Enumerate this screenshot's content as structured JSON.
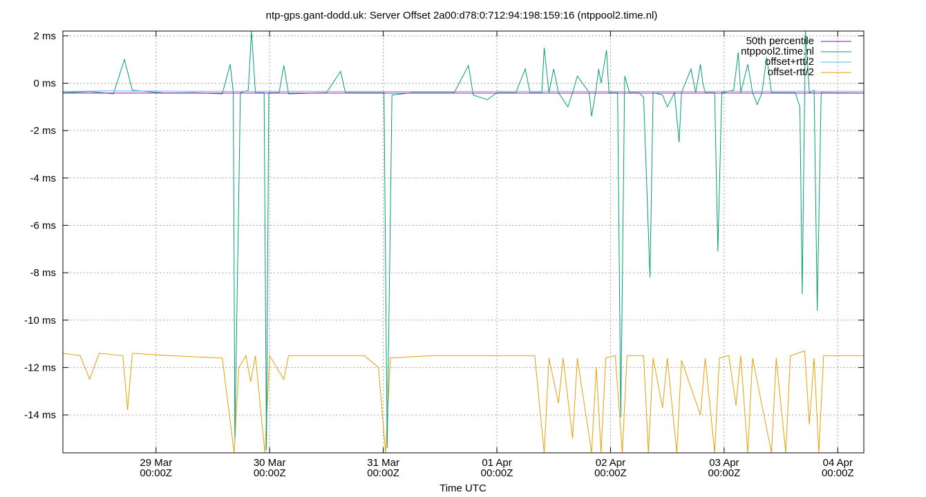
{
  "chart_data": {
    "type": "line",
    "title": "ntp-gps.gant-dodd.uk: Server Offset 2a00:d78:0:712:94:198:159:16 (ntppool2.time.nl)",
    "xlabel": "Time UTC",
    "ylabel": "",
    "ylim": [
      -15.6,
      2.2
    ],
    "xlim": [
      "2024-03-28T04:20Z",
      "2024-04-04T05:30Z"
    ],
    "grid": true,
    "legend_position": "top-right",
    "y_ticks": [
      {
        "value": 2,
        "label": "2 ms"
      },
      {
        "value": 0,
        "label": "0 ms"
      },
      {
        "value": -2,
        "label": "-2 ms"
      },
      {
        "value": -4,
        "label": "-4 ms"
      },
      {
        "value": -6,
        "label": "-6 ms"
      },
      {
        "value": -8,
        "label": "-8 ms"
      },
      {
        "value": -10,
        "label": "-10 ms"
      },
      {
        "value": -12,
        "label": "-12 ms"
      },
      {
        "value": -14,
        "label": "-14 ms"
      }
    ],
    "x_ticks": [
      {
        "value": "2024-03-29T00:00Z",
        "line1": "29 Mar",
        "line2": "00:00Z"
      },
      {
        "value": "2024-03-30T00:00Z",
        "line1": "30 Mar",
        "line2": "00:00Z"
      },
      {
        "value": "2024-03-31T00:00Z",
        "line1": "31 Mar",
        "line2": "00:00Z"
      },
      {
        "value": "2024-04-01T00:00Z",
        "line1": "01 Apr",
        "line2": "00:00Z"
      },
      {
        "value": "2024-04-02T00:00Z",
        "line1": "02 Apr",
        "line2": "00:00Z"
      },
      {
        "value": "2024-04-03T00:00Z",
        "line1": "03 Apr",
        "line2": "00:00Z"
      },
      {
        "value": "2024-04-04T00:00Z",
        "line1": "04 Apr",
        "line2": "00:00Z"
      }
    ],
    "series": [
      {
        "name": "50th percentile",
        "color": "#9400d3",
        "points": [
          [
            "2024-03-28T04:20Z",
            -0.42
          ],
          [
            "2024-04-04T05:30Z",
            -0.42
          ]
        ]
      },
      {
        "name": "ntppool2.time.nl",
        "color": "#009e73",
        "points": [
          [
            "2024-03-28T04:20Z",
            -0.4
          ],
          [
            "2024-03-28T10:00Z",
            -0.35
          ],
          [
            "2024-03-28T15:00Z",
            -0.45
          ],
          [
            "2024-03-28T17:20Z",
            1.0
          ],
          [
            "2024-03-28T19:00Z",
            -0.3
          ],
          [
            "2024-03-29T02:00Z",
            -0.42
          ],
          [
            "2024-03-29T08:00Z",
            -0.4
          ],
          [
            "2024-03-29T14:00Z",
            -0.45
          ],
          [
            "2024-03-29T15:40Z",
            0.8
          ],
          [
            "2024-03-29T16:20Z",
            -0.4
          ],
          [
            "2024-03-29T16:40Z",
            -15.0
          ],
          [
            "2024-03-29T17:50Z",
            -0.4
          ],
          [
            "2024-03-29T19:30Z",
            -0.3
          ],
          [
            "2024-03-29T20:10Z",
            2.2
          ],
          [
            "2024-03-29T21:00Z",
            -0.4
          ],
          [
            "2024-03-29T22:50Z",
            -0.4
          ],
          [
            "2024-03-29T23:20Z",
            -15.5
          ],
          [
            "2024-03-29T23:50Z",
            -0.4
          ],
          [
            "2024-03-30T02:00Z",
            -0.4
          ],
          [
            "2024-03-30T03:00Z",
            0.75
          ],
          [
            "2024-03-30T04:00Z",
            -0.45
          ],
          [
            "2024-03-30T12:00Z",
            -0.4
          ],
          [
            "2024-03-30T15:00Z",
            0.5
          ],
          [
            "2024-03-30T16:00Z",
            -0.4
          ],
          [
            "2024-03-30T22:00Z",
            -0.4
          ],
          [
            "2024-03-31T00:10Z",
            -0.4
          ],
          [
            "2024-03-31T00:50Z",
            -15.4
          ],
          [
            "2024-03-31T01:50Z",
            -0.5
          ],
          [
            "2024-03-31T06:00Z",
            -0.4
          ],
          [
            "2024-03-31T15:00Z",
            -0.4
          ],
          [
            "2024-03-31T18:00Z",
            0.75
          ],
          [
            "2024-03-31T19:00Z",
            -0.5
          ],
          [
            "2024-03-31T22:00Z",
            -0.7
          ],
          [
            "2024-04-01T00:00Z",
            -0.4
          ],
          [
            "2024-04-01T04:00Z",
            -0.4
          ],
          [
            "2024-04-01T06:00Z",
            0.6
          ],
          [
            "2024-04-01T07:00Z",
            -0.4
          ],
          [
            "2024-04-01T09:30Z",
            -0.4
          ],
          [
            "2024-04-01T10:00Z",
            1.5
          ],
          [
            "2024-04-01T11:00Z",
            -0.4
          ],
          [
            "2024-04-01T12:00Z",
            0.6
          ],
          [
            "2024-04-01T13:00Z",
            -0.4
          ],
          [
            "2024-04-01T15:00Z",
            -1.0
          ],
          [
            "2024-04-01T16:00Z",
            -0.4
          ],
          [
            "2024-04-01T17:00Z",
            0.3
          ],
          [
            "2024-04-01T19:30Z",
            -0.4
          ],
          [
            "2024-04-01T20:00Z",
            -1.4
          ],
          [
            "2024-04-01T21:00Z",
            -0.2
          ],
          [
            "2024-04-01T21:30Z",
            0.6
          ],
          [
            "2024-04-01T22:00Z",
            0.0
          ],
          [
            "2024-04-01T23:10Z",
            1.4
          ],
          [
            "2024-04-01T23:40Z",
            -0.4
          ],
          [
            "2024-04-02T01:30Z",
            -0.4
          ],
          [
            "2024-04-02T02:10Z",
            -14.1
          ],
          [
            "2024-04-02T03:00Z",
            0.3
          ],
          [
            "2024-04-02T04:00Z",
            -0.4
          ],
          [
            "2024-04-02T06:00Z",
            -0.4
          ],
          [
            "2024-04-02T07:00Z",
            -0.6
          ],
          [
            "2024-04-02T08:20Z",
            -8.2
          ],
          [
            "2024-04-02T09:00Z",
            -0.4
          ],
          [
            "2024-04-02T11:00Z",
            -0.5
          ],
          [
            "2024-04-02T12:00Z",
            -1.0
          ],
          [
            "2024-04-02T13:30Z",
            -0.4
          ],
          [
            "2024-04-02T14:30Z",
            -2.5
          ],
          [
            "2024-04-02T15:00Z",
            -0.4
          ],
          [
            "2024-04-02T17:00Z",
            0.6
          ],
          [
            "2024-04-02T18:00Z",
            -0.4
          ],
          [
            "2024-04-02T19:00Z",
            0.8
          ],
          [
            "2024-04-02T19:30Z",
            0.0
          ],
          [
            "2024-04-02T20:00Z",
            -0.4
          ],
          [
            "2024-04-02T22:00Z",
            -0.4
          ],
          [
            "2024-04-02T22:40Z",
            -7.1
          ],
          [
            "2024-04-02T23:30Z",
            -0.4
          ],
          [
            "2024-04-03T02:00Z",
            -0.3
          ],
          [
            "2024-04-03T03:00Z",
            1.3
          ],
          [
            "2024-04-03T03:30Z",
            -0.4
          ],
          [
            "2024-04-03T05:00Z",
            0.8
          ],
          [
            "2024-04-03T06:00Z",
            -0.4
          ],
          [
            "2024-04-03T07:00Z",
            -0.9
          ],
          [
            "2024-04-03T08:00Z",
            -0.4
          ],
          [
            "2024-04-03T09:00Z",
            1.1
          ],
          [
            "2024-04-03T10:00Z",
            -0.4
          ],
          [
            "2024-04-03T13:00Z",
            -0.4
          ],
          [
            "2024-04-03T15:00Z",
            -0.4
          ],
          [
            "2024-04-03T16:00Z",
            -1.0
          ],
          [
            "2024-04-03T16:30Z",
            -8.9
          ],
          [
            "2024-04-03T17:10Z",
            2.2
          ],
          [
            "2024-04-03T18:00Z",
            -0.4
          ],
          [
            "2024-04-03T19:00Z",
            -0.3
          ],
          [
            "2024-04-03T19:40Z",
            -9.6
          ],
          [
            "2024-04-03T20:30Z",
            -0.4
          ],
          [
            "2024-04-04T05:30Z",
            -0.42
          ]
        ]
      },
      {
        "name": "offset+rtt/2",
        "color": "#56b4e9",
        "points": [
          [
            "2024-03-28T04:20Z",
            -0.35
          ],
          [
            "2024-03-28T14:00Z",
            -0.33
          ],
          [
            "2024-03-29T08:00Z",
            -0.34
          ],
          [
            "2024-03-30T08:00Z",
            -0.34
          ],
          [
            "2024-03-31T08:00Z",
            -0.35
          ],
          [
            "2024-04-01T08:00Z",
            -0.34
          ],
          [
            "2024-04-02T08:00Z",
            -0.35
          ],
          [
            "2024-04-03T08:00Z",
            -0.34
          ],
          [
            "2024-04-04T05:30Z",
            -0.34
          ]
        ]
      },
      {
        "name": "offset-rtt/2",
        "color": "#e69f00",
        "points": [
          [
            "2024-03-28T04:20Z",
            -11.4
          ],
          [
            "2024-03-28T08:00Z",
            -11.5
          ],
          [
            "2024-03-28T10:00Z",
            -12.5
          ],
          [
            "2024-03-28T12:00Z",
            -11.4
          ],
          [
            "2024-03-28T17:00Z",
            -11.5
          ],
          [
            "2024-03-28T18:00Z",
            -13.8
          ],
          [
            "2024-03-28T19:00Z",
            -11.4
          ],
          [
            "2024-03-29T03:00Z",
            -11.5
          ],
          [
            "2024-03-29T14:00Z",
            -11.6
          ],
          [
            "2024-03-29T16:30Z",
            -15.6
          ],
          [
            "2024-03-29T17:30Z",
            -12.0
          ],
          [
            "2024-03-29T19:00Z",
            -11.5
          ],
          [
            "2024-03-29T20:00Z",
            -12.6
          ],
          [
            "2024-03-29T21:00Z",
            -11.5
          ],
          [
            "2024-03-29T23:00Z",
            -15.6
          ],
          [
            "2024-03-30T00:00Z",
            -11.5
          ],
          [
            "2024-03-30T03:00Z",
            -12.5
          ],
          [
            "2024-03-30T04:00Z",
            -11.5
          ],
          [
            "2024-03-30T20:00Z",
            -11.5
          ],
          [
            "2024-03-30T23:00Z",
            -12.0
          ],
          [
            "2024-03-31T00:30Z",
            -15.6
          ],
          [
            "2024-03-31T01:30Z",
            -11.6
          ],
          [
            "2024-03-31T10:00Z",
            -11.5
          ],
          [
            "2024-04-01T00:00Z",
            -11.5
          ],
          [
            "2024-04-01T08:00Z",
            -11.5
          ],
          [
            "2024-04-01T10:00Z",
            -15.6
          ],
          [
            "2024-04-01T11:00Z",
            -11.6
          ],
          [
            "2024-04-01T13:00Z",
            -13.5
          ],
          [
            "2024-04-01T14:00Z",
            -11.6
          ],
          [
            "2024-04-01T16:00Z",
            -15.0
          ],
          [
            "2024-04-01T17:00Z",
            -11.6
          ],
          [
            "2024-04-01T20:00Z",
            -15.6
          ],
          [
            "2024-04-01T21:00Z",
            -12.0
          ],
          [
            "2024-04-01T22:00Z",
            -15.6
          ],
          [
            "2024-04-01T23:00Z",
            -11.6
          ],
          [
            "2024-04-02T01:00Z",
            -11.5
          ],
          [
            "2024-04-02T02:30Z",
            -15.6
          ],
          [
            "2024-04-02T03:30Z",
            -11.5
          ],
          [
            "2024-04-02T07:00Z",
            -11.5
          ],
          [
            "2024-04-02T08:00Z",
            -15.6
          ],
          [
            "2024-04-02T09:00Z",
            -11.6
          ],
          [
            "2024-04-02T11:00Z",
            -13.7
          ],
          [
            "2024-04-02T12:00Z",
            -11.6
          ],
          [
            "2024-04-02T14:00Z",
            -15.6
          ],
          [
            "2024-04-02T15:00Z",
            -11.7
          ],
          [
            "2024-04-02T19:00Z",
            -14.0
          ],
          [
            "2024-04-02T20:00Z",
            -11.6
          ],
          [
            "2024-04-02T22:00Z",
            -15.6
          ],
          [
            "2024-04-02T23:00Z",
            -11.6
          ],
          [
            "2024-04-03T01:00Z",
            -11.5
          ],
          [
            "2024-04-03T02:30Z",
            -13.6
          ],
          [
            "2024-04-03T03:30Z",
            -11.5
          ],
          [
            "2024-04-03T05:00Z",
            -15.6
          ],
          [
            "2024-04-03T06:00Z",
            -11.6
          ],
          [
            "2024-04-03T10:00Z",
            -15.6
          ],
          [
            "2024-04-03T11:00Z",
            -11.6
          ],
          [
            "2024-04-03T13:00Z",
            -15.6
          ],
          [
            "2024-04-03T14:00Z",
            -11.5
          ],
          [
            "2024-04-03T17:00Z",
            -11.3
          ],
          [
            "2024-04-03T18:00Z",
            -14.4
          ],
          [
            "2024-04-03T19:00Z",
            -11.6
          ],
          [
            "2024-04-03T20:00Z",
            -15.6
          ],
          [
            "2024-04-03T21:00Z",
            -11.5
          ],
          [
            "2024-04-04T05:30Z",
            -11.5
          ]
        ]
      }
    ]
  }
}
